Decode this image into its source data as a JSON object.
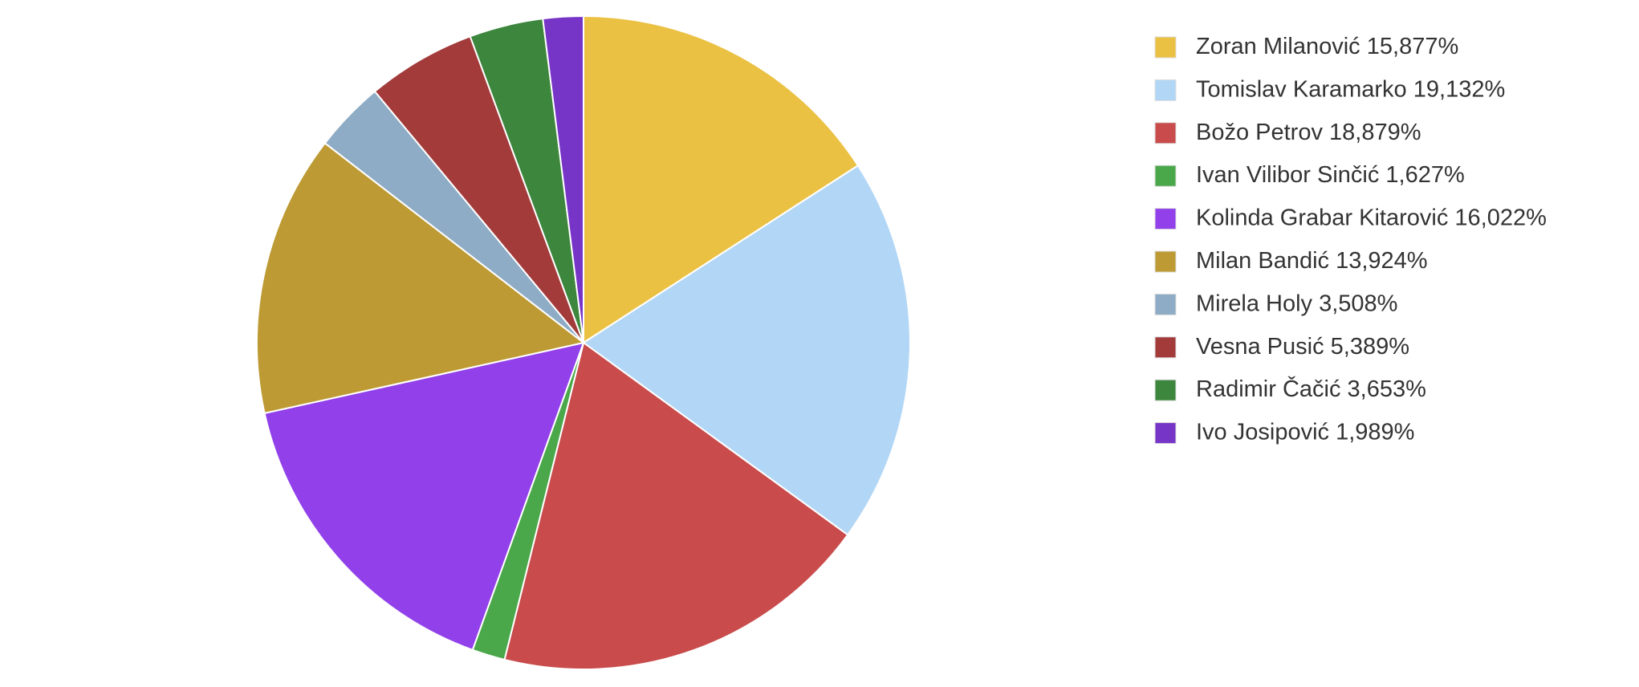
{
  "chart_data": {
    "type": "pie",
    "categories": [
      "Zoran Milanović",
      "Tomislav Karamarko",
      "Božo Petrov",
      "Ivan Vilibor Sinčić",
      "Kolinda Grabar Kitarović",
      "Milan Bandić",
      "Mirela Holy",
      "Vesna Pusić",
      "Radimir Čačić",
      "Ivo Josipović"
    ],
    "values": [
      15.877,
      19.132,
      18.879,
      1.627,
      16.022,
      13.924,
      3.508,
      5.389,
      3.653,
      1.989
    ],
    "value_labels": [
      "15,877%",
      "19,132%",
      "18,879%",
      "1,627%",
      "16,022%",
      "13,924%",
      "3,508%",
      "5,389%",
      "3,653%",
      "1,989%"
    ],
    "colors": [
      "#ebc144",
      "#b2d6f5",
      "#c94b4b",
      "#4aa84a",
      "#9140ea",
      "#bd9a34",
      "#8eacc5",
      "#a33b3b",
      "#3d863d",
      "#7735c8"
    ],
    "legend": "right"
  }
}
